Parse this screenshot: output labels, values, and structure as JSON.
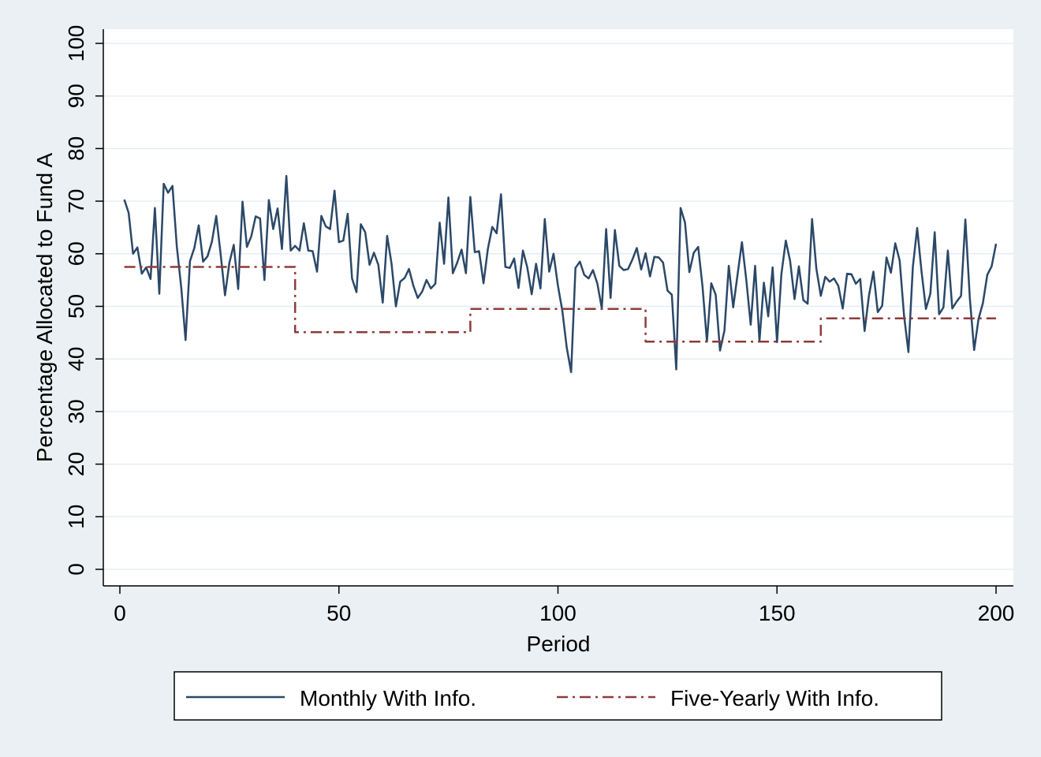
{
  "chart_data": {
    "type": "line",
    "title": "",
    "xlabel": "Period",
    "ylabel": "Percentage Allocated to Fund A",
    "xlim": [
      0,
      200
    ],
    "ylim": [
      0,
      100
    ],
    "xticks": [
      0,
      50,
      100,
      150,
      200
    ],
    "yticks": [
      0,
      10,
      20,
      30,
      40,
      50,
      60,
      70,
      80,
      90,
      100
    ],
    "grid": true,
    "legend_position": "bottom",
    "series": [
      {
        "name": "Monthly With Info.",
        "style": "solid",
        "color": "#2b4868",
        "x": [
          1,
          2,
          3,
          4,
          5,
          6,
          7,
          8,
          9,
          10,
          11,
          12,
          13,
          14,
          15,
          16,
          17,
          18,
          19,
          20,
          21,
          22,
          23,
          24,
          25,
          26,
          27,
          28,
          29,
          30,
          31,
          32,
          33,
          34,
          35,
          36,
          37,
          38,
          39,
          40,
          41,
          42,
          43,
          44,
          45,
          46,
          47,
          48,
          49,
          50,
          51,
          52,
          53,
          54,
          55,
          56,
          57,
          58,
          59,
          60,
          61,
          62,
          63,
          64,
          65,
          66,
          67,
          68,
          69,
          70,
          71,
          72,
          73,
          74,
          75,
          76,
          77,
          78,
          79,
          80,
          81,
          82,
          83,
          84,
          85,
          86,
          87,
          88,
          89,
          90,
          91,
          92,
          93,
          94,
          95,
          96,
          97,
          98,
          99,
          100,
          101,
          102,
          103,
          104,
          105,
          106,
          107,
          108,
          109,
          110,
          111,
          112,
          113,
          114,
          115,
          116,
          117,
          118,
          119,
          120,
          121,
          122,
          123,
          124,
          125,
          126,
          127,
          128,
          129,
          130,
          131,
          132,
          133,
          134,
          135,
          136,
          137,
          138,
          139,
          140,
          141,
          142,
          143,
          144,
          145,
          146,
          147,
          148,
          149,
          150,
          151,
          152,
          153,
          154,
          155,
          156,
          157,
          158,
          159,
          160,
          161,
          162,
          163,
          164,
          165,
          166,
          167,
          168,
          169,
          170,
          171,
          172,
          173,
          174,
          175,
          176,
          177,
          178,
          179,
          180,
          181,
          182,
          183,
          184,
          185,
          186,
          187,
          188,
          189,
          190,
          191,
          192,
          193,
          194,
          195,
          196,
          197,
          198,
          199,
          200
        ],
        "values": [
          70.3,
          67.8,
          60,
          61.2,
          56.2,
          57.4,
          55.2,
          68.7,
          52.4,
          73.3,
          71.6,
          72.9,
          61.4,
          53.6,
          43.6,
          58.6,
          61.1,
          65.4,
          58.5,
          59.5,
          62.3,
          67.2,
          59.9,
          52.1,
          58.3,
          61.7,
          53.3,
          69.9,
          61.3,
          63.3,
          67.1,
          66.7,
          55,
          70.2,
          64.7,
          68.6,
          60.9,
          74.8,
          60.6,
          61.5,
          60.6,
          65.8,
          60.6,
          60.5,
          56.6,
          67.2,
          65.2,
          64.7,
          72,
          62.2,
          62.5,
          67.6,
          55.3,
          52.7,
          65.6,
          64.1,
          57.9,
          60.2,
          57.9,
          50.7,
          63.4,
          58.2,
          50,
          54.7,
          55.4,
          57.1,
          53.9,
          51.6,
          52.8,
          55,
          53.4,
          54.3,
          65.9,
          58.1,
          70.7,
          56.3,
          58.3,
          60.8,
          56.3,
          70.8,
          60.3,
          60.5,
          54.4,
          60.9,
          65.1,
          63.9,
          71.3,
          57.5,
          57.3,
          59.1,
          53.5,
          60.6,
          57.4,
          52.3,
          58.1,
          53.4,
          66.6,
          56.6,
          60,
          53.9,
          49.1,
          42.2,
          37.5,
          57.3,
          58.5,
          56,
          55.3,
          56.9,
          54.3,
          49.6,
          64.7,
          51.6,
          64.5,
          57.7,
          56.9,
          57.1,
          58.9,
          61.1,
          57,
          60.1,
          55.7,
          59.4,
          59.3,
          58.3,
          53,
          52.2,
          38,
          68.7,
          65.9,
          56.5,
          60.2,
          61.3,
          53.8,
          43.3,
          54.4,
          52.2,
          41.6,
          45.4,
          57.7,
          49.8,
          56.1,
          62.2,
          54.9,
          46.5,
          57.7,
          43.4,
          54.5,
          48.1,
          57.4,
          43.2,
          56.1,
          62.5,
          58.6,
          51.4,
          57.6,
          51.2,
          50.5,
          66.6,
          57.1,
          52,
          55.6,
          54.7,
          55.3,
          53.9,
          49.6,
          56.2,
          56.1,
          54.3,
          55.2,
          45.3,
          52.1,
          56.6,
          48.9,
          50.1,
          59.3,
          56.4,
          62,
          58.7,
          48.3,
          41.3,
          57.5,
          64.9,
          56.5,
          49.5,
          52.4,
          64.1,
          48.5,
          49.8,
          60.6,
          49.6,
          50.9,
          52,
          66.5,
          51.7,
          41.7,
          47.6,
          50.6,
          56,
          57.6,
          61.9
        ]
      },
      {
        "name": "Five-Yearly With Info.",
        "style": "dash-dot",
        "color": "#8e3a3a",
        "x": [
          1,
          40,
          40,
          80,
          80,
          120,
          120,
          160,
          160,
          200
        ],
        "values": [
          57.5,
          57.5,
          45.1,
          45.1,
          49.5,
          49.5,
          43.3,
          43.3,
          47.7,
          47.7
        ]
      }
    ]
  }
}
